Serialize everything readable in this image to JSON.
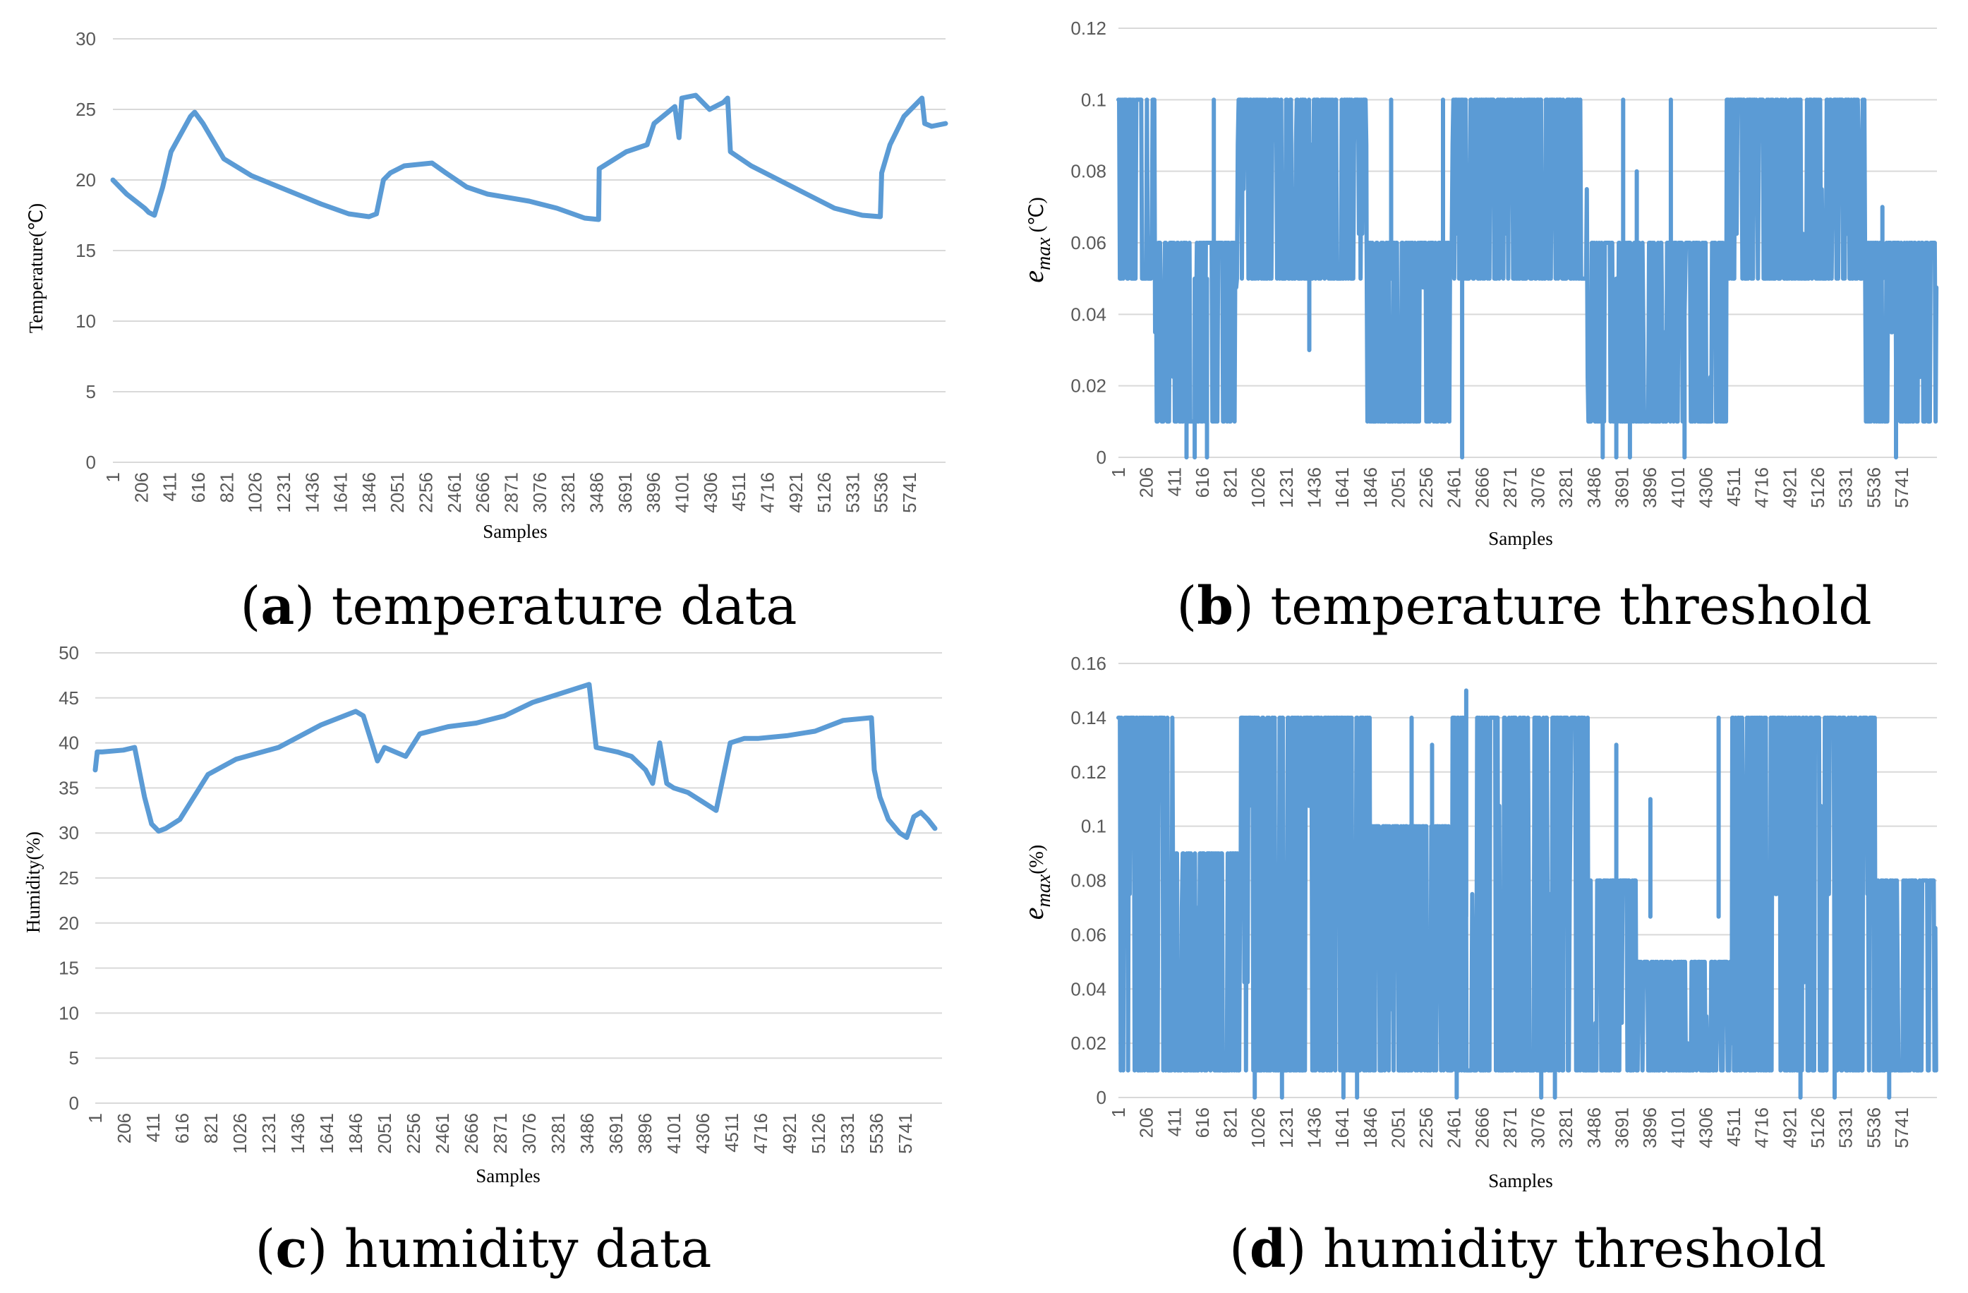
{
  "colors": {
    "series": "#5b9bd5",
    "grid": "#d9d9d9",
    "tick": "#595959"
  },
  "x_ticks": [
    "1",
    "206",
    "411",
    "616",
    "821",
    "1026",
    "1231",
    "1436",
    "1641",
    "1846",
    "2051",
    "2256",
    "2461",
    "2666",
    "2871",
    "3076",
    "3281",
    "3486",
    "3691",
    "3896",
    "4101",
    "4306",
    "4511",
    "4716",
    "4921",
    "5126",
    "5331",
    "5536",
    "5741"
  ],
  "chart_data": [
    {
      "id": "a",
      "type": "line",
      "caption_letter": "a",
      "caption_text": " temperature data",
      "xlabel": "Samples",
      "ylabel": "Temperature(℃)",
      "ylim": [
        0,
        30
      ],
      "yticks": [
        "0",
        "5",
        "10",
        "15",
        "20",
        "25",
        "30"
      ],
      "x": [
        1,
        100,
        230,
        260,
        300,
        360,
        420,
        560,
        590,
        650,
        800,
        1000,
        1200,
        1500,
        1700,
        1846,
        1900,
        1950,
        2000,
        2100,
        2300,
        2400,
        2550,
        2700,
        3000,
        3200,
        3400,
        3500,
        3505,
        3700,
        3850,
        3900,
        4050,
        4080,
        4100,
        4200,
        4300,
        4400,
        4430,
        4450,
        4600,
        4900,
        5200,
        5400,
        5530,
        5540,
        5600,
        5700,
        5830,
        5850,
        5900,
        6000
      ],
      "values": [
        20,
        19,
        18,
        17.7,
        17.5,
        19.5,
        22,
        24.5,
        24.8,
        24,
        21.5,
        20.3,
        19.5,
        18.3,
        17.6,
        17.4,
        17.6,
        20,
        20.5,
        21,
        21.2,
        20.5,
        19.5,
        19,
        18.5,
        18,
        17.3,
        17.2,
        20.8,
        22,
        22.5,
        24,
        25.2,
        23,
        25.8,
        26,
        25,
        25.5,
        25.8,
        22,
        21,
        19.5,
        18,
        17.5,
        17.4,
        20.5,
        22.5,
        24.5,
        25.8,
        24,
        23.8,
        24
      ]
    },
    {
      "id": "b",
      "type": "line",
      "caption_letter": "b",
      "caption_text": " temperature threshold",
      "xlabel": "Samples",
      "ylabel": "e",
      "ylabel_sub": "max",
      "ylabel_unit": " (℃)",
      "ylim": [
        0,
        0.12
      ],
      "yticks": [
        "0",
        "0.02",
        "0.04",
        "0.06",
        "0.08",
        "0.1",
        "0.12"
      ],
      "segments": [
        [
          0,
          270,
          0.05,
          0.1
        ],
        [
          270,
          870,
          0.01,
          0.06
        ],
        [
          870,
          1820,
          0.05,
          0.1
        ],
        [
          1820,
          2450,
          0.01,
          0.06
        ],
        [
          2450,
          3440,
          0.05,
          0.1
        ],
        [
          3440,
          4460,
          0.01,
          0.06
        ],
        [
          4460,
          5480,
          0.05,
          0.1
        ],
        [
          5480,
          6000,
          0.01,
          0.06
        ]
      ],
      "spikes": [
        [
          700,
          0.1
        ],
        [
          2000,
          0.1
        ],
        [
          2380,
          0.1
        ],
        [
          3700,
          0.1
        ],
        [
          3800,
          0.08
        ],
        [
          4050,
          0.1
        ],
        [
          500,
          0
        ],
        [
          560,
          0
        ],
        [
          650,
          0
        ],
        [
          2520,
          0
        ],
        [
          3550,
          0
        ],
        [
          3650,
          0
        ],
        [
          3750,
          0
        ],
        [
          4150,
          0
        ],
        [
          5700,
          0
        ],
        [
          5600,
          0.07
        ],
        [
          1400,
          0.03
        ]
      ]
    },
    {
      "id": "c",
      "type": "line",
      "caption_letter": "c",
      "caption_text": " humidity data",
      "xlabel": "Samples",
      "ylabel": "Humidity(%)",
      "ylim": [
        0,
        50
      ],
      "yticks": [
        "0",
        "5",
        "10",
        "15",
        "20",
        "25",
        "30",
        "35",
        "40",
        "45",
        "50"
      ],
      "x": [
        1,
        15,
        50,
        200,
        280,
        350,
        400,
        450,
        500,
        600,
        700,
        800,
        1000,
        1300,
        1600,
        1846,
        1900,
        2000,
        2050,
        2200,
        2300,
        2500,
        2700,
        2900,
        3100,
        3300,
        3500,
        3550,
        3700,
        3800,
        3900,
        3950,
        4000,
        4050,
        4100,
        4200,
        4300,
        4400,
        4500,
        4600,
        4700,
        4900,
        5100,
        5300,
        5500,
        5520,
        5560,
        5620,
        5700,
        5750,
        5800,
        5850,
        5900,
        5950
      ],
      "values": [
        37,
        39,
        39,
        39.2,
        39.5,
        34,
        31,
        30.2,
        30.5,
        31.5,
        34,
        36.5,
        38.2,
        39.5,
        42,
        43.5,
        43,
        38,
        39.5,
        38.5,
        41,
        41.8,
        42.2,
        43,
        44.5,
        45.5,
        46.5,
        39.5,
        39,
        38.5,
        37,
        35.5,
        40,
        35.5,
        35,
        34.5,
        33.5,
        32.5,
        40,
        40.5,
        40.5,
        40.8,
        41.3,
        42.5,
        42.8,
        37,
        34,
        31.5,
        30,
        29.5,
        31.8,
        32.3,
        31.5,
        30.5
      ]
    },
    {
      "id": "d",
      "type": "line",
      "caption_letter": "d",
      "caption_text": " humidity threshold",
      "xlabel": "Samples",
      "ylabel": "e",
      "ylabel_sub": "max",
      "ylabel_unit": "(%)",
      "ylim": [
        0,
        0.16
      ],
      "yticks": [
        "0",
        "0.02",
        "0.04",
        "0.06",
        "0.08",
        "0.1",
        "0.12",
        "0.14",
        "0.16"
      ],
      "segments": [
        [
          0,
          400,
          0.01,
          0.14
        ],
        [
          400,
          900,
          0.01,
          0.09
        ],
        [
          900,
          1850,
          0.01,
          0.14
        ],
        [
          1850,
          2450,
          0.01,
          0.1
        ],
        [
          2450,
          3450,
          0.01,
          0.14
        ],
        [
          3450,
          3800,
          0.01,
          0.08
        ],
        [
          3800,
          4500,
          0.01,
          0.05
        ],
        [
          4500,
          5550,
          0.01,
          0.14
        ],
        [
          5550,
          6000,
          0.01,
          0.08
        ]
      ],
      "spikes": [
        [
          2150,
          0.14
        ],
        [
          2300,
          0.13
        ],
        [
          3650,
          0.13
        ],
        [
          3900,
          0.11
        ],
        [
          4400,
          0.14
        ],
        [
          1000,
          0
        ],
        [
          1200,
          0
        ],
        [
          1650,
          0
        ],
        [
          1750,
          0
        ],
        [
          2480,
          0
        ],
        [
          2550,
          0.15
        ],
        [
          3100,
          0
        ],
        [
          3200,
          0
        ],
        [
          5000,
          0
        ],
        [
          5650,
          0
        ],
        [
          5250,
          0
        ]
      ]
    }
  ]
}
